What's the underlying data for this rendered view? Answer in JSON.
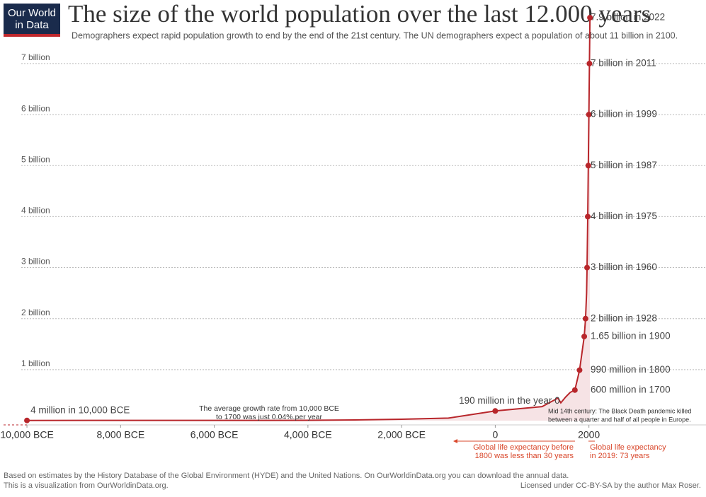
{
  "logo": [
    "Our World",
    "in Data"
  ],
  "chart_data": {
    "type": "line",
    "title": "The size of the world population over the last 12.000 years",
    "subtitle": "Demographers expect rapid population growth to end by the end of the 21st century. The UN demographers expect a population of about 11 billion in 2100.",
    "x": [
      -10000,
      -8000,
      -6000,
      -5000,
      -4000,
      -3000,
      -2000,
      -1000,
      0,
      1000,
      1340,
      1400,
      1500,
      1600,
      1700,
      1800,
      1900,
      1928,
      1950,
      1960,
      1975,
      1987,
      1999,
      2011,
      2022
    ],
    "series": [
      {
        "name": "World population",
        "color": "#b8262b",
        "values": [
          0.004,
          0.005,
          0.005,
          0.005,
          0.007,
          0.014,
          0.027,
          0.05,
          0.19,
          0.275,
          0.443,
          0.35,
          0.461,
          0.554,
          0.6,
          0.99,
          1.65,
          2,
          2.5,
          3,
          4,
          5,
          6,
          7,
          7.9
        ]
      }
    ],
    "points": {
      "x": [
        -10000,
        0,
        1700,
        1800,
        1900,
        1928,
        1960,
        1975,
        1987,
        1999,
        2011,
        2022
      ],
      "values": [
        0.004,
        0.19,
        0.6,
        0.99,
        1.65,
        2,
        3,
        4,
        5,
        6,
        7,
        7.9
      ],
      "labels": [
        "4 million in 10,000 BCE",
        "190 million in the year 0",
        "600 million in 1700",
        "990 million in 1800",
        "1.65 billion in 1900",
        "2 billion in 1928",
        "3 billion in 1960",
        "4 billion in 1975",
        "5 billion in 1987",
        "6 billion in 1999",
        "7 billion in 2011",
        "7.9 billion in 2022"
      ]
    },
    "xlim": [
      -10500,
      4500
    ],
    "xticks": [
      {
        "value": -10000,
        "label": "10,000 BCE"
      },
      {
        "value": -8000,
        "label": "8,000 BCE"
      },
      {
        "value": -6000,
        "label": "6,000 BCE"
      },
      {
        "value": -4000,
        "label": "4,000 BCE"
      },
      {
        "value": -2000,
        "label": "2,000 BCE"
      },
      0,
      2000
    ],
    "ylim": [
      0,
      7.9
    ],
    "yticks": [
      {
        "value": 1,
        "label": "1 billion"
      },
      {
        "value": 2,
        "label": "2 billion"
      },
      {
        "value": 3,
        "label": "3 billion"
      },
      {
        "value": 4,
        "label": "4 billion"
      },
      {
        "value": 5,
        "label": "5 billion"
      },
      {
        "value": 6,
        "label": "6 billion"
      },
      {
        "value": 7,
        "label": "7 billion"
      }
    ],
    "grid": true,
    "annotations": {
      "growth": [
        "The average growth rate from 10,000 BCE",
        "to 1700 was just  0.04%.per year"
      ],
      "black_death": [
        "Mid 14th century: The Black Death pandemic killed",
        "between a quarter and half of all people in Europe."
      ],
      "life_before": [
        "Global life expectancy before",
        "1800 was less than 30 years"
      ],
      "life_now": [
        "Global life expectancy",
        "in 2019: 73 years"
      ]
    }
  },
  "footer": {
    "source": "Based on estimates by the History Database of the Global Environment (HYDE) and the United Nations. On OurWorldinData.org you can download the annual data.",
    "note": "This is a visualization from OurWorldinData.org.",
    "license": "Licensed under CC-BY-SA by the author Max Roser."
  }
}
